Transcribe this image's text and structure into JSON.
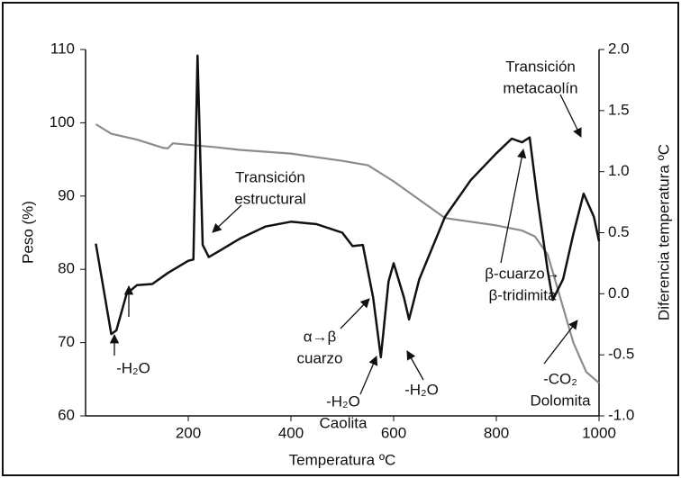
{
  "chart_data": {
    "type": "line",
    "xlabel": "Temperatura ºC",
    "ylabel": "Peso (%)",
    "y2label": "Diferencia temperatura ºC",
    "xlim": [
      0,
      1000
    ],
    "xticks": [
      200,
      400,
      600,
      800,
      1000
    ],
    "ylim": [
      60,
      110
    ],
    "yticks": [
      60,
      70,
      80,
      90,
      100,
      110
    ],
    "y2lim": [
      -1.0,
      2.0
    ],
    "y2ticks": [
      {
        "value": -1.0,
        "label": "-1.0"
      },
      -0.5,
      {
        "value": 0.0,
        "label": "0.0"
      },
      0.5,
      {
        "value": 1.0,
        "label": "1.0"
      },
      1.5,
      {
        "value": 2.0,
        "label": "2.0"
      }
    ],
    "series": [
      {
        "name": "Peso",
        "color": "#8c8c8c",
        "x": [
          20,
          50,
          100,
          150,
          160,
          170,
          200,
          250,
          300,
          400,
          500,
          550,
          600,
          650,
          700,
          750,
          800,
          850,
          875,
          900,
          925,
          950,
          975,
          1000
        ],
        "values": [
          99.8,
          98.5,
          97.7,
          96.6,
          96.5,
          97.2,
          97,
          96.7,
          96.3,
          95.8,
          94.8,
          94.2,
          92,
          89.5,
          87,
          86.5,
          86,
          85.3,
          84.5,
          82,
          76,
          70,
          66,
          64.5
        ]
      },
      {
        "name": "Diferencia temperatura",
        "color": "#111111",
        "axis": "y2",
        "x": [
          20,
          50,
          60,
          80,
          100,
          130,
          160,
          200,
          210,
          218,
          228,
          240,
          260,
          300,
          350,
          400,
          450,
          500,
          520,
          540,
          560,
          575,
          590,
          600,
          620,
          630,
          650,
          700,
          750,
          800,
          830,
          850,
          865,
          880,
          900,
          910,
          930,
          950,
          970,
          990,
          1000
        ],
        "values": [
          0.41,
          -0.33,
          -0.3,
          0.0,
          0.07,
          0.08,
          0.17,
          0.27,
          0.28,
          1.95,
          0.4,
          0.3,
          0.35,
          0.45,
          0.55,
          0.59,
          0.57,
          0.5,
          0.39,
          0.4,
          -0.03,
          -0.52,
          0.1,
          0.25,
          -0.03,
          -0.21,
          0.12,
          0.63,
          0.93,
          1.15,
          1.27,
          1.24,
          1.28,
          0.78,
          0.19,
          -0.05,
          0.12,
          0.49,
          0.82,
          0.63,
          0.43
        ]
      }
    ],
    "annotations": [
      {
        "lines": [
          "-H₂O"
        ]
      },
      {
        "lines": [
          "Transición",
          "estructural"
        ]
      },
      {
        "lines": [
          "α→β",
          "cuarzo"
        ]
      },
      {
        "lines": [
          "-H₂O",
          "Caolita"
        ]
      },
      {
        "lines": [
          "-H₂O"
        ]
      },
      {
        "lines": [
          "β-cuarzo→",
          "β-tridimita"
        ]
      },
      {
        "lines": [
          "-CO₂",
          "Dolomita"
        ]
      },
      {
        "lines": [
          "Transición",
          "metacaolín"
        ]
      }
    ]
  }
}
